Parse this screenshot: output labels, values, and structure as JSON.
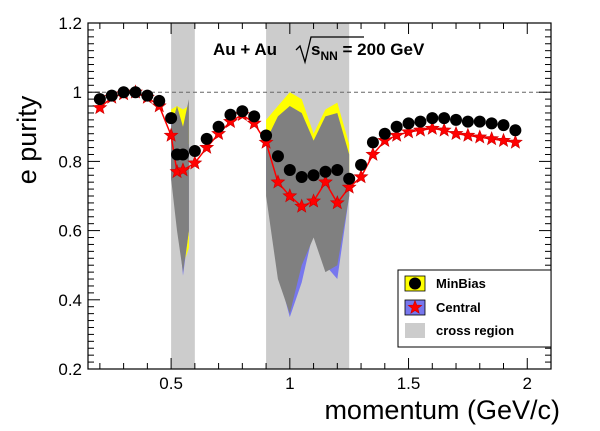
{
  "chart_data": {
    "type": "scatter",
    "xlabel": "momentum (GeV/c)",
    "ylabel": "e purity",
    "xlim": [
      0.15,
      2.1
    ],
    "ylim": [
      0.2,
      1.2
    ],
    "x_ticks": [
      0.5,
      1,
      1.5,
      2
    ],
    "x_tick_labels": [
      "0.5",
      "1",
      "1.5",
      "2"
    ],
    "y_ticks": [
      0.2,
      0.4,
      0.6,
      0.8,
      1.0,
      1.2
    ],
    "y_tick_labels": [
      "0.2",
      "0.4",
      "0.6",
      "0.8",
      "1",
      "1.2"
    ],
    "reference_line_y": 1.0,
    "annotation": {
      "system": "Au + Au",
      "energy_prefix": "s",
      "energy_subscript": "NN",
      "energy_value": " = 200 GeV"
    },
    "cross_regions": [
      [
        0.5,
        0.6
      ],
      [
        0.9,
        1.25
      ]
    ],
    "legend": {
      "position": "bottom-right",
      "entries": [
        "MinBias",
        "Central",
        "cross region"
      ]
    },
    "colors": {
      "minbias_marker": "#000000",
      "minbias_band": "#ffff00",
      "central_marker": "#ff0000",
      "central_band": "#7777ee",
      "gray_band": "#808080",
      "cross_region": "#cccccc"
    },
    "series": [
      {
        "name": "MinBias",
        "marker": "circle",
        "x": [
          0.2,
          0.25,
          0.3,
          0.35,
          0.4,
          0.45,
          0.5,
          0.525,
          0.55,
          0.6,
          0.65,
          0.7,
          0.75,
          0.8,
          0.85,
          0.9,
          0.95,
          1.0,
          1.05,
          1.1,
          1.15,
          1.2,
          1.25,
          1.3,
          1.35,
          1.4,
          1.45,
          1.5,
          1.55,
          1.6,
          1.65,
          1.7,
          1.75,
          1.8,
          1.85,
          1.9,
          1.95
        ],
        "y": [
          0.98,
          0.99,
          1.0,
          1.0,
          0.99,
          0.975,
          0.925,
          0.82,
          0.82,
          0.83,
          0.865,
          0.9,
          0.935,
          0.945,
          0.93,
          0.875,
          0.815,
          0.775,
          0.755,
          0.76,
          0.77,
          0.775,
          0.75,
          0.79,
          0.855,
          0.88,
          0.9,
          0.91,
          0.915,
          0.925,
          0.925,
          0.92,
          0.915,
          0.915,
          0.91,
          0.905,
          0.89
        ]
      },
      {
        "name": "Central",
        "marker": "star",
        "x": [
          0.2,
          0.25,
          0.3,
          0.35,
          0.4,
          0.45,
          0.5,
          0.525,
          0.55,
          0.6,
          0.65,
          0.7,
          0.75,
          0.8,
          0.85,
          0.9,
          0.95,
          1.0,
          1.05,
          1.1,
          1.15,
          1.2,
          1.25,
          1.3,
          1.35,
          1.4,
          1.45,
          1.5,
          1.55,
          1.6,
          1.65,
          1.7,
          1.75,
          1.8,
          1.85,
          1.9,
          1.95
        ],
        "y": [
          0.955,
          0.985,
          0.995,
          1.0,
          0.985,
          0.96,
          0.875,
          0.77,
          0.775,
          0.795,
          0.84,
          0.88,
          0.915,
          0.935,
          0.91,
          0.855,
          0.74,
          0.7,
          0.67,
          0.685,
          0.74,
          0.68,
          0.725,
          0.755,
          0.82,
          0.86,
          0.875,
          0.885,
          0.89,
          0.895,
          0.89,
          0.88,
          0.875,
          0.87,
          0.865,
          0.86,
          0.855
        ]
      }
    ],
    "bands": [
      {
        "name": "MinBias band",
        "x": [
          0.5,
          0.525,
          0.55,
          0.575,
          0.9,
          0.95,
          1.0,
          1.05,
          1.1,
          1.15,
          1.2,
          1.25
        ],
        "y_upper": [
          0.95,
          0.96,
          0.95,
          0.96,
          0.92,
          0.96,
          1.0,
          0.98,
          0.88,
          0.95,
          0.97,
          0.85
        ],
        "y_lower": [
          0.85,
          0.75,
          0.5,
          0.55,
          0.85,
          0.7,
          0.6,
          0.55,
          0.65,
          0.72,
          0.6,
          0.75
        ]
      },
      {
        "name": "Central band",
        "x": [
          0.5,
          0.525,
          0.55,
          0.575,
          0.9,
          0.95,
          1.0,
          1.05,
          1.1,
          1.15,
          1.2,
          1.25
        ],
        "y_upper": [
          0.92,
          0.88,
          0.85,
          0.85,
          0.88,
          0.82,
          0.8,
          0.78,
          0.76,
          0.8,
          0.78,
          0.75
        ],
        "y_lower": [
          0.75,
          0.65,
          0.47,
          0.6,
          0.72,
          0.48,
          0.35,
          0.45,
          0.6,
          0.5,
          0.46,
          0.7
        ]
      },
      {
        "name": "Gray band",
        "x": [
          0.5,
          0.525,
          0.55,
          0.575,
          0.9,
          0.95,
          1.0,
          1.05,
          1.1,
          1.15,
          1.2,
          1.25
        ],
        "y_upper": [
          0.9,
          0.96,
          0.9,
          0.98,
          0.86,
          0.93,
          0.96,
          0.94,
          0.86,
          0.93,
          0.94,
          0.82
        ],
        "y_lower": [
          0.75,
          0.6,
          0.48,
          0.6,
          0.7,
          0.46,
          0.36,
          0.5,
          0.58,
          0.48,
          0.5,
          0.7
        ]
      }
    ]
  }
}
